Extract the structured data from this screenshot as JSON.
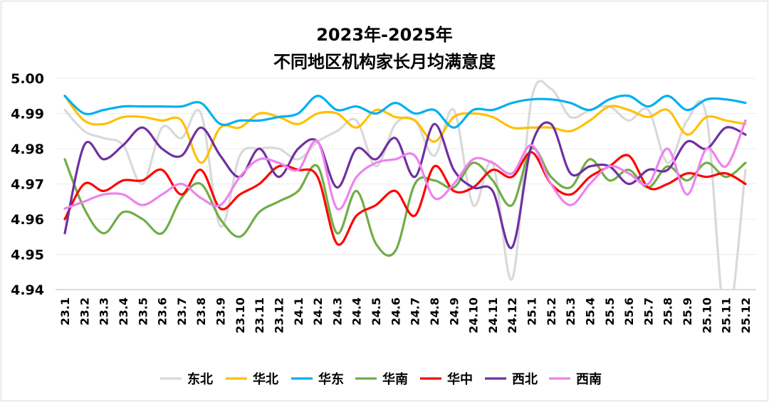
{
  "chart_data": {
    "type": "line",
    "title": [
      "2023年-2025年",
      "不同地区机构家长月均满意度"
    ],
    "xlabel": "",
    "ylabel": "",
    "ylim": [
      4.94,
      5.0
    ],
    "yticks": [
      "5.00",
      "4.99",
      "4.98",
      "4.97",
      "4.96",
      "4.95",
      "4.94"
    ],
    "grid": true,
    "legend_position": "bottom",
    "categories": [
      "23.1",
      "23.2",
      "23.3",
      "23.4",
      "23.5",
      "23.6",
      "23.7",
      "23.8",
      "23.9",
      "23.10",
      "23.11",
      "23.12",
      "24.1",
      "24.2",
      "24.3",
      "24.4",
      "24.5",
      "24.6",
      "24.7",
      "24.8",
      "24.9",
      "24.10",
      "24.11",
      "24.12",
      "25.1",
      "25.2",
      "25.3",
      "25.4",
      "25.5",
      "25.6",
      "25.7",
      "25.8",
      "25.9",
      "25.10",
      "25.11",
      "25.12"
    ],
    "series": [
      {
        "name": "东北",
        "color": "#d9d9d9",
        "values": [
          4.991,
          4.985,
          4.983,
          4.981,
          4.97,
          4.986,
          4.983,
          4.99,
          4.958,
          4.978,
          4.98,
          4.98,
          4.977,
          4.982,
          4.985,
          4.988,
          4.975,
          4.987,
          4.988,
          4.978,
          4.991,
          4.964,
          4.976,
          4.943,
          4.994,
          4.997,
          4.989,
          4.991,
          4.992,
          4.988,
          4.991,
          4.976,
          4.988,
          4.989,
          4.93,
          4.974
        ]
      },
      {
        "name": "华北",
        "color": "#ffc000",
        "values": [
          4.995,
          4.988,
          4.987,
          4.989,
          4.989,
          4.988,
          4.988,
          4.976,
          4.986,
          4.986,
          4.99,
          4.989,
          4.987,
          4.99,
          4.99,
          4.986,
          4.991,
          4.989,
          4.988,
          4.982,
          4.989,
          4.99,
          4.989,
          4.986,
          4.986,
          4.986,
          4.985,
          4.988,
          4.992,
          4.991,
          4.989,
          4.991,
          4.984,
          4.989,
          4.988,
          4.987
        ]
      },
      {
        "name": "华东",
        "color": "#00b0f0",
        "values": [
          4.995,
          4.99,
          4.991,
          4.992,
          4.992,
          4.992,
          4.992,
          4.993,
          4.987,
          4.988,
          4.988,
          4.989,
          4.99,
          4.995,
          4.991,
          4.992,
          4.99,
          4.993,
          4.99,
          4.991,
          4.986,
          4.991,
          4.991,
          4.993,
          4.994,
          4.994,
          4.993,
          4.991,
          4.994,
          4.995,
          4.992,
          4.995,
          4.991,
          4.994,
          4.994,
          4.993
        ]
      },
      {
        "name": "华南",
        "color": "#70ad47",
        "values": [
          4.977,
          4.963,
          4.956,
          4.962,
          4.96,
          4.956,
          4.966,
          4.97,
          4.96,
          4.955,
          4.962,
          4.965,
          4.968,
          4.975,
          4.956,
          4.968,
          4.953,
          4.951,
          4.97,
          4.971,
          4.969,
          4.976,
          4.971,
          4.964,
          4.98,
          4.972,
          4.969,
          4.977,
          4.971,
          4.974,
          4.969,
          4.975,
          4.971,
          4.976,
          4.972,
          4.976
        ]
      },
      {
        "name": "华中",
        "color": "#ff0000",
        "values": [
          4.96,
          4.97,
          4.968,
          4.971,
          4.971,
          4.974,
          4.967,
          4.974,
          4.963,
          4.967,
          4.97,
          4.975,
          4.974,
          4.972,
          4.953,
          4.961,
          4.964,
          4.968,
          4.961,
          4.975,
          4.968,
          4.969,
          4.974,
          4.972,
          4.979,
          4.97,
          4.967,
          4.972,
          4.975,
          4.978,
          4.969,
          4.97,
          4.973,
          4.972,
          4.973,
          4.97
        ]
      },
      {
        "name": "西北",
        "color": "#7030a0",
        "values": [
          4.956,
          4.981,
          4.977,
          4.981,
          4.986,
          4.98,
          4.978,
          4.986,
          4.978,
          4.972,
          4.98,
          4.972,
          4.98,
          4.982,
          4.969,
          4.98,
          4.977,
          4.983,
          4.972,
          4.987,
          4.974,
          4.969,
          4.968,
          4.952,
          4.981,
          4.987,
          4.973,
          4.975,
          4.975,
          4.97,
          4.974,
          4.974,
          4.982,
          4.98,
          4.986,
          4.984
        ]
      },
      {
        "name": "西南",
        "color": "#ee82ee",
        "values": [
          4.963,
          4.965,
          4.967,
          4.967,
          4.964,
          4.967,
          4.97,
          4.966,
          4.964,
          4.972,
          4.977,
          4.976,
          4.974,
          4.982,
          4.963,
          4.972,
          4.976,
          4.977,
          4.978,
          4.966,
          4.97,
          4.977,
          4.976,
          4.973,
          4.981,
          4.97,
          4.964,
          4.97,
          4.975,
          4.973,
          4.97,
          4.98,
          4.967,
          4.98,
          4.975,
          4.988
        ]
      }
    ]
  }
}
